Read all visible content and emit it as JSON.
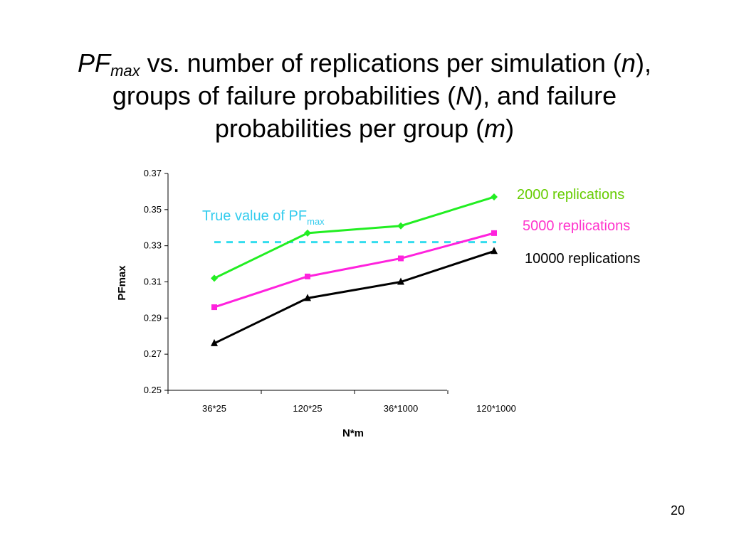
{
  "title": {
    "line1_prefix_italic": "PF",
    "line1_sub_italic": "max",
    "line1_text": " vs. number of replications per simulation (",
    "line1_var": "n",
    "line1_end": "),",
    "line2_text": "groups of failure probabilities (",
    "line2_var": "N",
    "line2_end": "), and failure",
    "line3_text": "probabilities per group (",
    "line3_var": "m",
    "line3_end": ")"
  },
  "slide_number": "20",
  "colors": {
    "green": "#22ee22",
    "magenta": "#ff22dd",
    "black": "#000000",
    "cyan": "#33ddee",
    "green_label": "#66cc00",
    "magenta_label": "#ff33cc",
    "cyan_label": "#33ccee"
  },
  "chart_data": {
    "type": "line",
    "categories": [
      "36*25",
      "120*25",
      "36*1000",
      "120*1000"
    ],
    "xlabel": "N*m",
    "ylabel": "PFmax",
    "ylim": [
      0.25,
      0.37
    ],
    "yticks": [
      "0.25",
      "0.27",
      "0.29",
      "0.31",
      "0.33",
      "0.35",
      "0.37"
    ],
    "grid": false,
    "series": [
      {
        "name": "2000 replications",
        "color_key": "green",
        "label_color_key": "green_label",
        "marker": "diamond",
        "values": [
          0.312,
          0.337,
          0.341,
          0.357
        ]
      },
      {
        "name": "5000 replications",
        "color_key": "magenta",
        "label_color_key": "magenta_label",
        "marker": "square",
        "values": [
          0.296,
          0.313,
          0.323,
          0.337
        ]
      },
      {
        "name": "10000 replications",
        "color_key": "black",
        "label_color_key": "black",
        "marker": "triangle",
        "values": [
          0.276,
          0.301,
          0.31,
          0.327
        ]
      }
    ],
    "reference_line": {
      "value": 0.332,
      "label_text": "True value of PF",
      "label_sub": "max",
      "color_key": "cyan_label",
      "style": "dashed"
    }
  }
}
